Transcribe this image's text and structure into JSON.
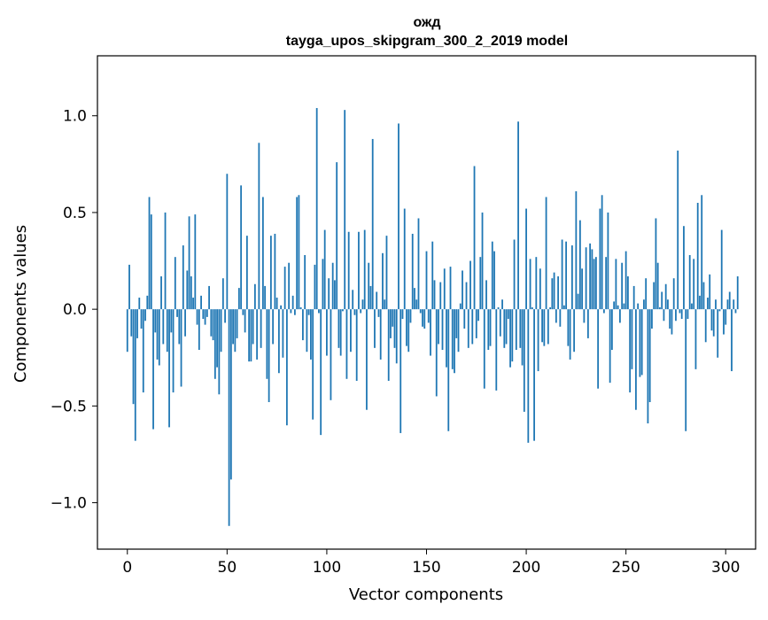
{
  "chart_data": {
    "type": "bar",
    "title": "ожд",
    "subtitle": "tayga_upos_skipgram_300_2_2019 model",
    "xlabel": "Vector components",
    "ylabel": "Components values",
    "xlim": [
      -15,
      315
    ],
    "ylim": [
      -1.24,
      1.31
    ],
    "x_ticks": [
      0,
      50,
      100,
      150,
      200,
      250,
      300
    ],
    "x_tick_labels": [
      "0",
      "50",
      "100",
      "150",
      "200",
      "250",
      "300"
    ],
    "y_ticks": [
      -1.0,
      -0.5,
      0.0,
      0.5,
      1.0
    ],
    "y_tick_labels": [
      "−1.0",
      "−0.5",
      "0.0",
      "0.5",
      "1.0"
    ],
    "grid": false,
    "bar_color": "#1f77b4",
    "series": [
      {
        "values": [
          -0.22,
          0.23,
          -0.14,
          -0.49,
          -0.68,
          -0.15,
          0.06,
          -0.1,
          -0.43,
          -0.06,
          0.07,
          0.58,
          0.49,
          -0.62,
          -0.12,
          -0.26,
          -0.29,
          0.17,
          -0.18,
          0.5,
          -0.22,
          -0.61,
          -0.12,
          -0.43,
          0.27,
          -0.04,
          -0.18,
          -0.4,
          0.33,
          -0.14,
          0.2,
          0.48,
          0.17,
          0.06,
          0.49,
          -0.08,
          -0.21,
          0.07,
          -0.05,
          -0.08,
          -0.04,
          0.12,
          -0.14,
          -0.16,
          -0.36,
          -0.3,
          -0.44,
          -0.22,
          0.16,
          -0.07,
          0.7,
          -1.12,
          -0.88,
          -0.18,
          -0.22,
          -0.15,
          0.11,
          0.64,
          -0.03,
          -0.12,
          0.38,
          -0.27,
          -0.27,
          -0.18,
          0.13,
          -0.26,
          0.86,
          -0.2,
          0.58,
          0.12,
          -0.36,
          -0.48,
          0.38,
          -0.18,
          0.39,
          0.06,
          -0.33,
          0.02,
          -0.25,
          0.22,
          -0.6,
          0.24,
          -0.02,
          0.07,
          -0.03,
          0.58,
          0.59,
          0.01,
          -0.16,
          0.28,
          -0.22,
          -0.03,
          -0.26,
          -0.57,
          0.23,
          1.04,
          -0.02,
          -0.65,
          0.26,
          0.41,
          -0.24,
          0.16,
          -0.47,
          0.24,
          0.15,
          0.76,
          -0.2,
          -0.24,
          -0.01,
          1.03,
          -0.36,
          0.4,
          -0.22,
          0.1,
          -0.03,
          -0.37,
          0.4,
          -0.02,
          0.05,
          0.41,
          -0.52,
          0.24,
          0.12,
          0.88,
          -0.2,
          0.09,
          -0.04,
          -0.26,
          0.29,
          0.05,
          0.38,
          -0.37,
          -0.15,
          -0.09,
          -0.2,
          -0.28,
          0.96,
          -0.64,
          -0.05,
          0.52,
          -0.19,
          -0.22,
          -0.07,
          0.39,
          0.11,
          0.05,
          0.47,
          -0.02,
          -0.09,
          -0.1,
          0.3,
          -0.07,
          -0.24,
          0.35,
          0.15,
          -0.45,
          -0.18,
          0.14,
          -0.21,
          0.21,
          -0.3,
          -0.63,
          0.22,
          -0.31,
          -0.33,
          -0.15,
          -0.22,
          0.03,
          0.2,
          -0.1,
          0.14,
          -0.2,
          0.25,
          -0.18,
          0.74,
          -0.15,
          -0.06,
          0.27,
          0.5,
          -0.41,
          0.15,
          -0.21,
          -0.19,
          0.35,
          0.3,
          -0.42,
          0.01,
          -0.14,
          0.05,
          -0.2,
          -0.18,
          -0.05,
          -0.3,
          -0.27,
          0.36,
          -0.21,
          0.97,
          -0.2,
          -0.29,
          -0.53,
          0.52,
          -0.69,
          0.26,
          0.01,
          -0.68,
          0.27,
          -0.32,
          0.21,
          -0.17,
          -0.19,
          0.58,
          -0.18,
          0.01,
          0.16,
          0.19,
          -0.07,
          0.17,
          -0.09,
          0.36,
          0.02,
          0.35,
          -0.19,
          -0.26,
          0.33,
          -0.22,
          0.61,
          0.08,
          0.46,
          0.21,
          -0.07,
          0.32,
          -0.15,
          0.34,
          0.31,
          0.26,
          0.27,
          -0.41,
          0.52,
          0.59,
          -0.02,
          0.27,
          0.5,
          -0.38,
          -0.21,
          0.04,
          0.26,
          0.02,
          -0.07,
          0.24,
          0.03,
          0.3,
          0.17,
          -0.43,
          -0.31,
          0.12,
          -0.52,
          0.03,
          -0.35,
          -0.34,
          0.05,
          0.16,
          -0.59,
          -0.48,
          -0.1,
          0.14,
          0.47,
          0.24,
          0.01,
          0.09,
          -0.06,
          0.13,
          0.05,
          -0.1,
          -0.13,
          0.16,
          -0.06,
          0.82,
          -0.02,
          -0.05,
          0.43,
          -0.63,
          -0.05,
          0.28,
          0.03,
          0.26,
          -0.31,
          0.55,
          0.07,
          0.59,
          0.14,
          -0.17,
          0.06,
          0.18,
          -0.11,
          -0.14,
          0.05,
          -0.25,
          -0.01,
          0.41,
          -0.13,
          -0.08,
          0.05,
          0.09,
          -0.32,
          0.05,
          -0.02,
          0.17
        ]
      }
    ]
  }
}
